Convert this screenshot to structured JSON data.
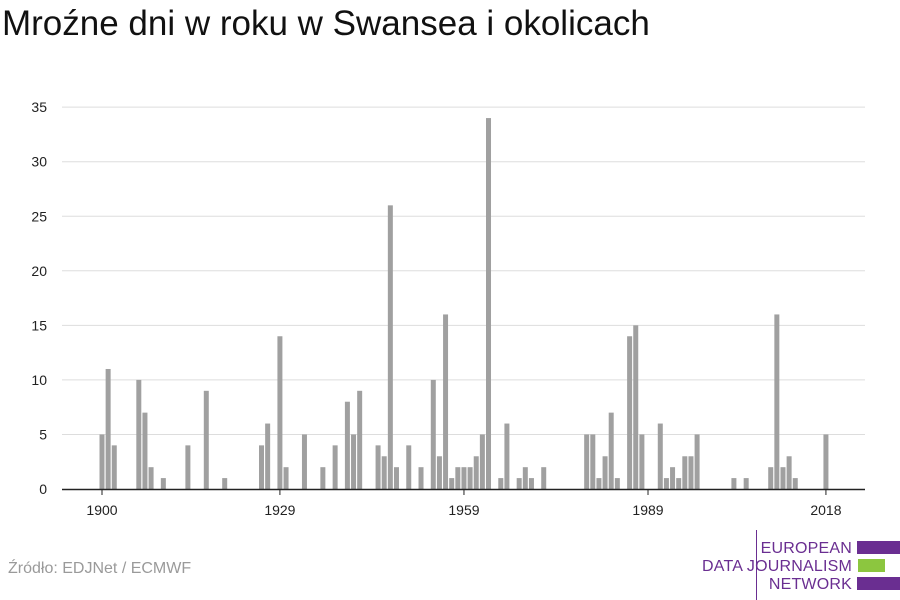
{
  "page": {
    "title": "Mroźne dni w roku w Swansea i okolicach",
    "source": "Źródło: EDJNet / ECMWF",
    "logo": [
      "EUROPEAN",
      "DATA JOURNALISM",
      "NETWORK"
    ]
  },
  "colors": {
    "bar": "#a0a0a0",
    "grid": "#dddddd",
    "axis": "#222222",
    "brand_purple": "#6a2e91",
    "brand_green": "#8cc63f"
  },
  "chart_data": {
    "type": "bar",
    "title": "Mroźne dni w roku w Swansea i okolicach",
    "xlabel": "",
    "ylabel": "",
    "x_ticks": [
      1900,
      1929,
      1959,
      1989,
      2018
    ],
    "y_ticks": [
      0,
      5,
      10,
      15,
      20,
      25,
      30,
      35
    ],
    "xlim": [
      1900,
      2018
    ],
    "ylim": [
      0,
      35
    ],
    "grid": true,
    "legend": "none",
    "series": [
      {
        "values": [
          [
            1900,
            5
          ],
          [
            1901,
            11
          ],
          [
            1902,
            4
          ],
          [
            1906,
            10
          ],
          [
            1907,
            7
          ],
          [
            1908,
            2
          ],
          [
            1910,
            1
          ],
          [
            1914,
            4
          ],
          [
            1917,
            9
          ],
          [
            1920,
            1
          ],
          [
            1926,
            4
          ],
          [
            1927,
            6
          ],
          [
            1929,
            14
          ],
          [
            1930,
            2
          ],
          [
            1933,
            5
          ],
          [
            1936,
            2
          ],
          [
            1938,
            4
          ],
          [
            1940,
            8
          ],
          [
            1941,
            5
          ],
          [
            1942,
            9
          ],
          [
            1945,
            4
          ],
          [
            1946,
            3
          ],
          [
            1947,
            26
          ],
          [
            1948,
            2
          ],
          [
            1950,
            4
          ],
          [
            1952,
            2
          ],
          [
            1954,
            10
          ],
          [
            1955,
            3
          ],
          [
            1956,
            16
          ],
          [
            1957,
            1
          ],
          [
            1958,
            2
          ],
          [
            1959,
            2
          ],
          [
            1960,
            2
          ],
          [
            1961,
            3
          ],
          [
            1962,
            5
          ],
          [
            1963,
            34
          ],
          [
            1965,
            1
          ],
          [
            1966,
            6
          ],
          [
            1968,
            1
          ],
          [
            1969,
            2
          ],
          [
            1970,
            1
          ],
          [
            1972,
            2
          ],
          [
            1979,
            5
          ],
          [
            1980,
            5
          ],
          [
            1981,
            1
          ],
          [
            1982,
            3
          ],
          [
            1983,
            7
          ],
          [
            1984,
            1
          ],
          [
            1986,
            14
          ],
          [
            1987,
            15
          ],
          [
            1988,
            5
          ],
          [
            1991,
            6
          ],
          [
            1992,
            1
          ],
          [
            1993,
            2
          ],
          [
            1994,
            1
          ],
          [
            1995,
            3
          ],
          [
            1996,
            3
          ],
          [
            1997,
            5
          ],
          [
            2003,
            1
          ],
          [
            2005,
            1
          ],
          [
            2009,
            2
          ],
          [
            2010,
            16
          ],
          [
            2011,
            2
          ],
          [
            2012,
            3
          ],
          [
            2013,
            1
          ],
          [
            2018,
            5
          ]
        ]
      }
    ]
  }
}
